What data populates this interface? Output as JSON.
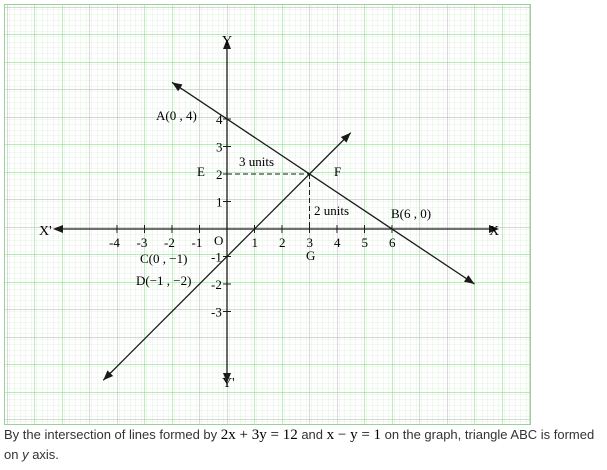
{
  "graph": {
    "axis_labels": {
      "x_pos": "X",
      "x_neg": "X'",
      "y_pos": "Y",
      "y_neg": "Y'",
      "origin": "O"
    },
    "x_ticks": [
      "-4",
      "-3",
      "-2",
      "-1",
      "1",
      "2",
      "3",
      "4",
      "5",
      "6"
    ],
    "y_ticks": [
      "4",
      "3",
      "2",
      "1",
      "-1",
      "-2",
      "-3"
    ],
    "points": {
      "A": "A(0 , 4)",
      "B": "B(6 , 0)",
      "C": "C(0 , −1)",
      "D": "D(−1 , −2)",
      "E": "E",
      "F": "F",
      "G": "G"
    },
    "annotations": {
      "horizontal": "3 units",
      "vertical": "2 units"
    },
    "lines": [
      {
        "equation": "2x + 3y = 12",
        "x_range": [
          -2,
          9
        ]
      },
      {
        "equation": "x − y = 1",
        "x_range": [
          -4.5,
          4.5
        ]
      }
    ],
    "grid_color": "#a7cfa7",
    "line_color": "#1a1a1a"
  },
  "caption": {
    "part1": "By the intersection of lines formed by ",
    "eq1": "2x + 3y = 12",
    "part2": " and ",
    "eq2": "x − y = 1",
    "part3": " on the graph, triangle ABC is formed on ",
    "y_var": "y",
    "part4": " axis."
  }
}
